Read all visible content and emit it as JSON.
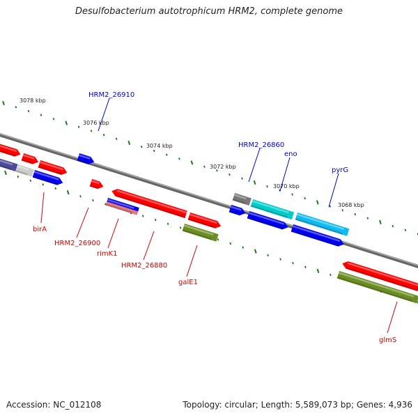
{
  "title": "Desulfobacterium autotrophicum HRM2, complete genome",
  "footer": {
    "accession": "Accession: NC_012108",
    "topology": "Topology: circular; Length: 5,589,073 bp; Genes: 4,936"
  },
  "scale_labels": [
    "3078 kbp",
    "3076 kbp",
    "3074 kbp",
    "3072 kbp",
    "3070 kbp",
    "3068 kbp"
  ],
  "upper_gene_labels": [
    "HRM2_26910",
    "HRM2_26860",
    "eno",
    "pyrG"
  ],
  "lower_gene_labels": [
    "birA",
    "HRM2_26900",
    "rimK1",
    "HRM2_26880",
    "galE1",
    "glmS"
  ],
  "colors": {
    "red": "#ff0000",
    "blue": "#0000ee",
    "cyan": "#00cccc",
    "lightblue": "#11bbee",
    "olive": "#6b8e23",
    "gray": "#777777",
    "navy": "#4b4b9a",
    "silver": "#cccccc",
    "pink": "#e57b7b",
    "tick_green": "#1a7a1a",
    "upper_label": "#0000cc",
    "lower_label": "#cc0000"
  }
}
